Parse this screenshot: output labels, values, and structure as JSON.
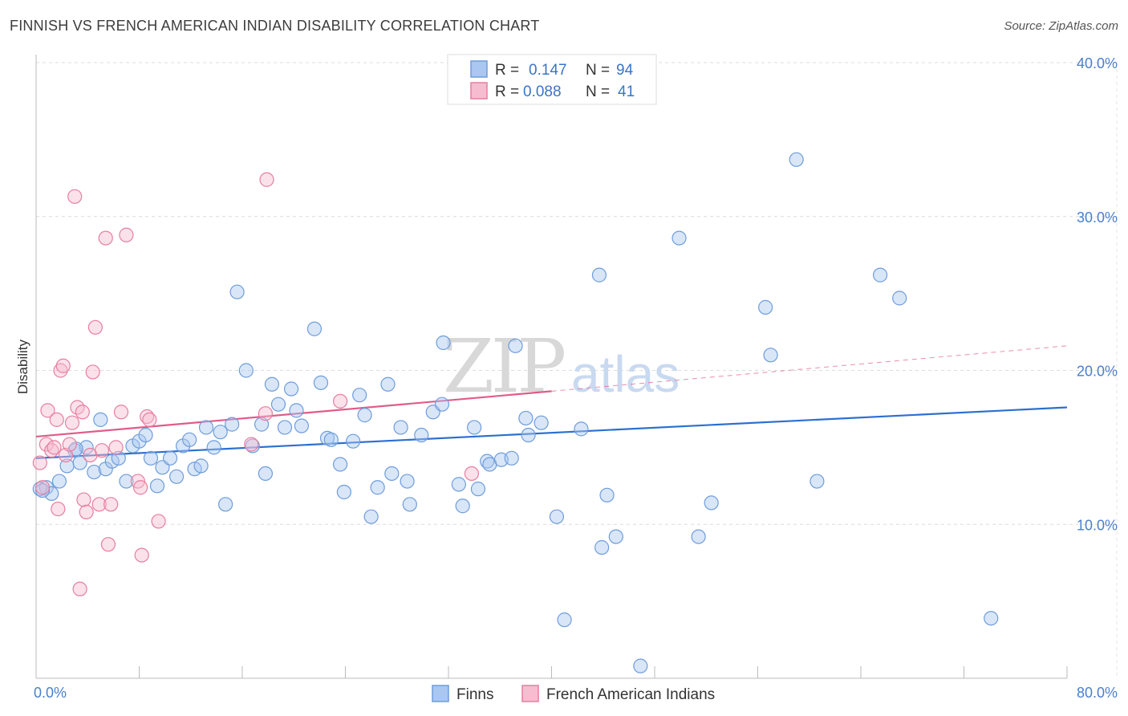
{
  "title": "FINNISH VS FRENCH AMERICAN INDIAN DISABILITY CORRELATION CHART",
  "source": "Source: ZipAtlas.com",
  "watermark": {
    "part1": "ZIP",
    "part2": "atlas"
  },
  "legend": {
    "rows": [
      {
        "r_label": "R =",
        "r_value": "0.147",
        "n_label": "N =",
        "n_value": "94",
        "color": "#a9c7f0",
        "stroke": "#6f9ddb"
      },
      {
        "r_label": "R =",
        "r_value": "0.088",
        "n_label": "N =",
        "n_value": "41",
        "color": "#f7bcd0",
        "stroke": "#e57fa0"
      }
    ]
  },
  "bottom_legend": [
    {
      "label": "Finns",
      "color": "#a9c7f0",
      "stroke": "#6f9ddb"
    },
    {
      "label": "French American Indians",
      "color": "#f7bcd0",
      "stroke": "#e57fa0"
    }
  ],
  "chart_data": {
    "type": "scatter",
    "title": "FINNISH VS FRENCH AMERICAN INDIAN DISABILITY CORRELATION CHART",
    "xlabel": "",
    "ylabel": "Disability",
    "xlim": [
      0,
      80
    ],
    "ylim": [
      0,
      40
    ],
    "x_tick_labels": [
      "0.0%",
      "80.0%"
    ],
    "y_ticks": [
      10,
      20,
      30,
      40
    ],
    "y_tick_labels": [
      "10.0%",
      "20.0%",
      "30.0%",
      "40.0%"
    ],
    "grid": true,
    "legend_position": "top-center",
    "series": [
      {
        "name": "Finns",
        "color": "#6f9ddb",
        "fill": "#a9c7f0",
        "trend": {
          "x0": 0,
          "y0": 14.3,
          "x1": 80,
          "y1": 17.6,
          "dashed_from": null
        },
        "points": [
          [
            0.3,
            12.3
          ],
          [
            0.8,
            12.4
          ],
          [
            1.2,
            12.0
          ],
          [
            1.8,
            12.8
          ],
          [
            2.4,
            13.8
          ],
          [
            3.0,
            14.8
          ],
          [
            3.4,
            14.0
          ],
          [
            3.9,
            15.0
          ],
          [
            4.5,
            13.4
          ],
          [
            5.0,
            16.8
          ],
          [
            5.4,
            13.6
          ],
          [
            5.9,
            14.1
          ],
          [
            6.4,
            14.3
          ],
          [
            7.0,
            12.8
          ],
          [
            7.5,
            15.1
          ],
          [
            8.0,
            15.4
          ],
          [
            8.5,
            15.8
          ],
          [
            8.9,
            14.3
          ],
          [
            9.4,
            12.5
          ],
          [
            9.8,
            13.7
          ],
          [
            10.4,
            14.3
          ],
          [
            10.9,
            13.1
          ],
          [
            11.4,
            15.1
          ],
          [
            11.9,
            15.5
          ],
          [
            12.3,
            13.6
          ],
          [
            12.8,
            13.8
          ],
          [
            13.2,
            16.3
          ],
          [
            13.8,
            15.0
          ],
          [
            14.3,
            16.0
          ],
          [
            14.7,
            11.3
          ],
          [
            15.2,
            16.5
          ],
          [
            15.6,
            25.1
          ],
          [
            16.3,
            20.0
          ],
          [
            16.8,
            15.1
          ],
          [
            17.5,
            16.5
          ],
          [
            17.8,
            13.3
          ],
          [
            18.3,
            19.1
          ],
          [
            18.8,
            17.8
          ],
          [
            19.3,
            16.3
          ],
          [
            19.8,
            18.8
          ],
          [
            20.2,
            17.4
          ],
          [
            20.6,
            16.4
          ],
          [
            21.6,
            22.7
          ],
          [
            22.1,
            19.2
          ],
          [
            22.6,
            15.6
          ],
          [
            22.9,
            15.5
          ],
          [
            23.6,
            13.9
          ],
          [
            23.9,
            12.1
          ],
          [
            24.6,
            15.4
          ],
          [
            25.1,
            18.4
          ],
          [
            25.5,
            17.1
          ],
          [
            26.0,
            10.5
          ],
          [
            26.5,
            12.4
          ],
          [
            27.3,
            19.1
          ],
          [
            27.6,
            13.3
          ],
          [
            28.3,
            16.3
          ],
          [
            28.8,
            12.8
          ],
          [
            29.0,
            11.3
          ],
          [
            29.9,
            15.8
          ],
          [
            30.8,
            17.3
          ],
          [
            31.5,
            17.8
          ],
          [
            31.6,
            21.8
          ],
          [
            32.8,
            12.6
          ],
          [
            33.1,
            11.2
          ],
          [
            34.0,
            16.3
          ],
          [
            34.3,
            12.3
          ],
          [
            35.0,
            14.1
          ],
          [
            35.2,
            13.9
          ],
          [
            36.1,
            14.2
          ],
          [
            36.9,
            14.3
          ],
          [
            37.2,
            21.6
          ],
          [
            38.0,
            16.9
          ],
          [
            38.2,
            15.8
          ],
          [
            39.2,
            16.6
          ],
          [
            40.4,
            10.5
          ],
          [
            41.0,
            3.8
          ],
          [
            42.3,
            16.2
          ],
          [
            43.7,
            26.2
          ],
          [
            43.9,
            8.5
          ],
          [
            44.3,
            11.9
          ],
          [
            45.0,
            9.2
          ],
          [
            46.9,
            0.8
          ],
          [
            49.9,
            28.6
          ],
          [
            51.4,
            9.2
          ],
          [
            52.4,
            11.4
          ],
          [
            56.6,
            24.1
          ],
          [
            57.0,
            21.0
          ],
          [
            59.0,
            33.7
          ],
          [
            60.6,
            12.8
          ],
          [
            65.5,
            26.2
          ],
          [
            67.0,
            24.7
          ],
          [
            74.1,
            3.9
          ],
          [
            0.5,
            12.2
          ],
          [
            3.1,
            14.9
          ]
        ]
      },
      {
        "name": "French American Indians",
        "color": "#e57fa0",
        "fill": "#f7bcd0",
        "trend": {
          "x0": 0,
          "y0": 15.7,
          "x1": 80,
          "y1": 21.6,
          "dashed_from": 40
        },
        "points": [
          [
            0.3,
            14.0
          ],
          [
            0.5,
            12.4
          ],
          [
            0.8,
            15.2
          ],
          [
            0.9,
            17.4
          ],
          [
            1.2,
            14.8
          ],
          [
            1.4,
            15.0
          ],
          [
            1.6,
            16.8
          ],
          [
            1.7,
            11.0
          ],
          [
            1.9,
            20.0
          ],
          [
            2.1,
            20.3
          ],
          [
            2.3,
            14.5
          ],
          [
            2.6,
            15.2
          ],
          [
            2.8,
            16.6
          ],
          [
            3.0,
            31.3
          ],
          [
            3.2,
            17.6
          ],
          [
            3.4,
            5.8
          ],
          [
            3.6,
            17.3
          ],
          [
            3.7,
            11.6
          ],
          [
            3.9,
            10.8
          ],
          [
            4.2,
            14.5
          ],
          [
            4.4,
            19.9
          ],
          [
            4.6,
            22.8
          ],
          [
            4.9,
            11.3
          ],
          [
            5.1,
            14.8
          ],
          [
            5.4,
            28.6
          ],
          [
            5.6,
            8.7
          ],
          [
            5.8,
            11.3
          ],
          [
            6.2,
            15.0
          ],
          [
            6.6,
            17.3
          ],
          [
            7.0,
            28.8
          ],
          [
            7.9,
            12.8
          ],
          [
            8.1,
            12.4
          ],
          [
            8.2,
            8.0
          ],
          [
            8.6,
            17.0
          ],
          [
            8.8,
            16.8
          ],
          [
            9.5,
            10.2
          ],
          [
            16.7,
            15.2
          ],
          [
            17.8,
            17.2
          ],
          [
            17.9,
            32.4
          ],
          [
            23.6,
            18.0
          ],
          [
            33.8,
            13.3
          ]
        ]
      }
    ]
  }
}
